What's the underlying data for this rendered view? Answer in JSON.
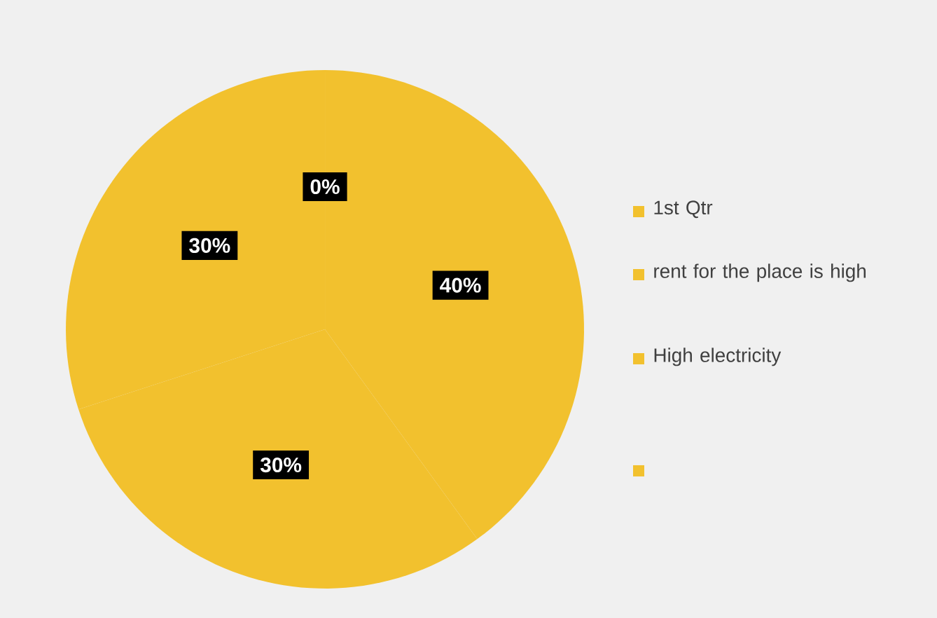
{
  "chart_data": {
    "type": "pie",
    "categories": [
      "1st Qtr",
      "rent for the place is high",
      "High electricity",
      null
    ],
    "values": [
      0,
      40,
      30,
      30
    ],
    "colors": [
      "#f2c12e",
      "#f2c12e",
      "#f2c12e",
      "#f2c12e"
    ],
    "value_labels": [
      "0%",
      "40%",
      "30%",
      "30%"
    ],
    "legend": "right"
  }
}
